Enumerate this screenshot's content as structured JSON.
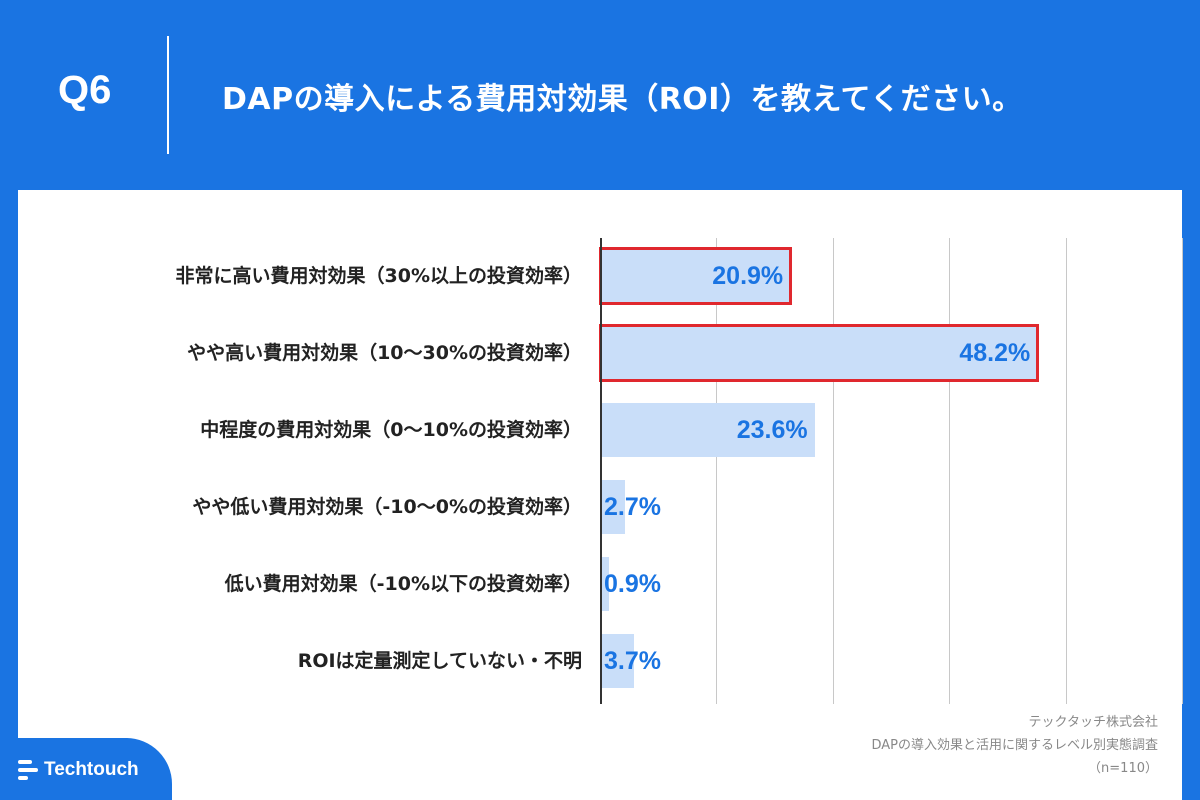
{
  "header": {
    "question_number": "Q6",
    "question_text": "DAPの導入による費用対効果（ROI）を教えてください。"
  },
  "chart_data": {
    "type": "bar",
    "orientation": "horizontal",
    "categories": [
      "非常に高い費用対効果（30%以上の投資効率）",
      "やや高い費用対効果（10〜30%の投資効率）",
      "中程度の費用対効果（0〜10%の投資効率）",
      "やや低い費用対効果（-10〜0%の投資効率）",
      "低い費用対効果（-10%以下の投資効率）",
      "ROIは定量測定していない・不明"
    ],
    "values": [
      20.9,
      48.2,
      23.6,
      2.7,
      0.9,
      3.7
    ],
    "value_labels": [
      "20.9%",
      "48.2%",
      "23.6%",
      "2.7%",
      "0.9%",
      "3.7%"
    ],
    "highlighted": [
      true,
      true,
      false,
      false,
      false,
      false
    ],
    "xlim": [
      0,
      50
    ],
    "grid_step": 10,
    "unit": "%"
  },
  "footer": {
    "source_company": "テックタッチ株式会社",
    "survey_title": "DAPの導入効果と活用に関するレベル別実態調査",
    "sample_size": "（n=110）"
  },
  "brand": {
    "logo_text": "Techtouch",
    "primary_color": "#1a74e2",
    "bar_color": "#c9def9",
    "highlight_color": "#e0282e"
  }
}
